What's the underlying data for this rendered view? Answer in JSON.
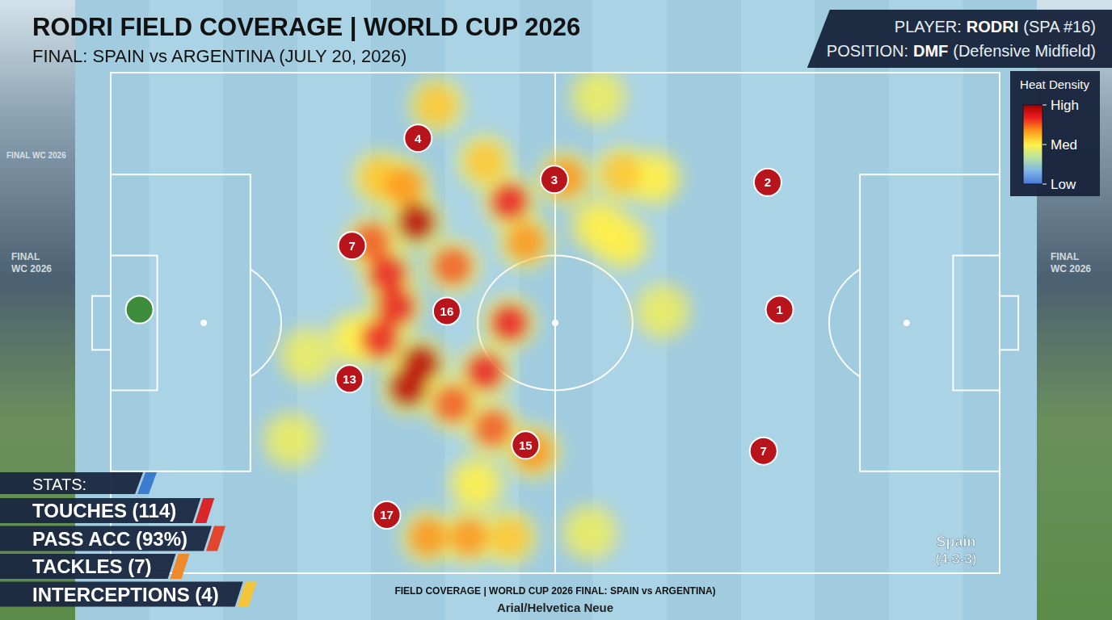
{
  "chart_data": {
    "type": "heatmap",
    "title": "RODRI FIELD COVERAGE | WORLD CUP 2026",
    "subtitle": "FINAL: SPAIN vs ARGENTINA (JULY 20, 2026)",
    "player": {
      "label": "PLAYER:",
      "name": "RODRI",
      "detail": "(SPA #16)"
    },
    "position": {
      "label": "POSITION:",
      "value": "DMF",
      "detail": "(Defensive Midfield)"
    },
    "xlim": [
      0,
      105
    ],
    "ylim": [
      0,
      68
    ],
    "tick_labels": false,
    "hotspots": [
      {
        "x": 23.2,
        "y": 38.4,
        "intensity": 0.45
      },
      {
        "x": 21.3,
        "y": 49.9,
        "intensity": 0.45
      },
      {
        "x": 57.6,
        "y": 3.3,
        "intensity": 0.45
      },
      {
        "x": 56.6,
        "y": 62.5,
        "intensity": 0.45
      },
      {
        "x": 65.2,
        "y": 32.4,
        "intensity": 0.45
      },
      {
        "x": 60.4,
        "y": 23.0,
        "intensity": 0.5
      },
      {
        "x": 57.6,
        "y": 20.8,
        "intensity": 0.5
      },
      {
        "x": 43.2,
        "y": 55.9,
        "intensity": 0.5
      },
      {
        "x": 64.2,
        "y": 14.3,
        "intensity": 0.5
      },
      {
        "x": 28.9,
        "y": 36.2,
        "intensity": 0.5
      },
      {
        "x": 38.5,
        "y": 4.4,
        "intensity": 0.58
      },
      {
        "x": 60.4,
        "y": 13.7,
        "intensity": 0.58
      },
      {
        "x": 47.1,
        "y": 63.1,
        "intensity": 0.58
      },
      {
        "x": 31.8,
        "y": 14.3,
        "intensity": 0.58
      },
      {
        "x": 44.2,
        "y": 12.1,
        "intensity": 0.58
      },
      {
        "x": 53.7,
        "y": 14.3,
        "intensity": 0.67
      },
      {
        "x": 37.5,
        "y": 63.1,
        "intensity": 0.67
      },
      {
        "x": 49.9,
        "y": 51.5,
        "intensity": 0.67
      },
      {
        "x": 42.3,
        "y": 63.1,
        "intensity": 0.67
      },
      {
        "x": 34.6,
        "y": 15.4,
        "intensity": 0.67
      },
      {
        "x": 49.0,
        "y": 23.0,
        "intensity": 0.67
      },
      {
        "x": 45.1,
        "y": 48.3,
        "intensity": 0.75
      },
      {
        "x": 30.8,
        "y": 23.0,
        "intensity": 0.75
      },
      {
        "x": 40.4,
        "y": 26.3,
        "intensity": 0.75
      },
      {
        "x": 40.4,
        "y": 45.0,
        "intensity": 0.75
      },
      {
        "x": 47.1,
        "y": 17.5,
        "intensity": 0.83
      },
      {
        "x": 47.1,
        "y": 34.0,
        "intensity": 0.83
      },
      {
        "x": 32.7,
        "y": 27.4,
        "intensity": 0.83
      },
      {
        "x": 33.7,
        "y": 31.8,
        "intensity": 0.83
      },
      {
        "x": 44.2,
        "y": 40.6,
        "intensity": 0.83
      },
      {
        "x": 31.8,
        "y": 36.2,
        "intensity": 0.83
      },
      {
        "x": 36.1,
        "y": 20.3,
        "intensity": 0.95
      },
      {
        "x": 36.6,
        "y": 39.5,
        "intensity": 0.95
      },
      {
        "x": 35.1,
        "y": 42.8,
        "intensity": 0.95
      }
    ],
    "colorbar": {
      "title": "Heat Density",
      "range": [
        0,
        1
      ],
      "ticks": [
        {
          "value": 1,
          "label": "High"
        },
        {
          "value": 0.5,
          "label": "Med"
        },
        {
          "value": 0,
          "label": "Low"
        }
      ],
      "colors": [
        "#4a78d8",
        "#7fb6e8",
        "#b7e3a0",
        "#fff04a",
        "#ff9a1a",
        "#ec2020",
        "#a60000"
      ]
    },
    "players": [
      {
        "label": "4",
        "x": 36.3,
        "y": 8.9,
        "color": "#b8141c"
      },
      {
        "label": "3",
        "x": 52.4,
        "y": 14.5,
        "color": "#b8141c"
      },
      {
        "label": "2",
        "x": 77.6,
        "y": 14.9,
        "color": "#b8141c"
      },
      {
        "label": "7",
        "x": 28.5,
        "y": 23.5,
        "color": "#b8141c"
      },
      {
        "label": "16",
        "x": 39.7,
        "y": 32.4,
        "color": "#b8141c"
      },
      {
        "label": "1",
        "x": 79.0,
        "y": 32.2,
        "color": "#b8141c"
      },
      {
        "label": "13",
        "x": 28.2,
        "y": 41.6,
        "color": "#b8141c"
      },
      {
        "label": "15",
        "x": 49.0,
        "y": 50.6,
        "color": "#b8141c"
      },
      {
        "label": "7",
        "x": 77.1,
        "y": 51.4,
        "color": "#b8141c"
      },
      {
        "label": "17",
        "x": 32.6,
        "y": 60.1,
        "color": "#b8141c"
      },
      {
        "label": null,
        "x": 3.4,
        "y": 32.2,
        "color": "#3c8c3c"
      }
    ],
    "stats": {
      "title": "STATS:",
      "items": [
        "TOUCHES (114)",
        "PASS ACC (93%)",
        "TACKLES (7)",
        "INTERCEPTIONS (4)"
      ]
    },
    "formation": {
      "team": "Spain",
      "label": "(4-3-3)"
    },
    "footer": "FIELD COVERAGE | WORLD CUP 2026 FINAL: SPAIN vs ARGENTINA)",
    "font_note": "Arial/Helvetica Neue",
    "banners": [
      "FINAL WC 2026",
      "FINAL WC 2026",
      "FINAL WC 2026"
    ]
  }
}
